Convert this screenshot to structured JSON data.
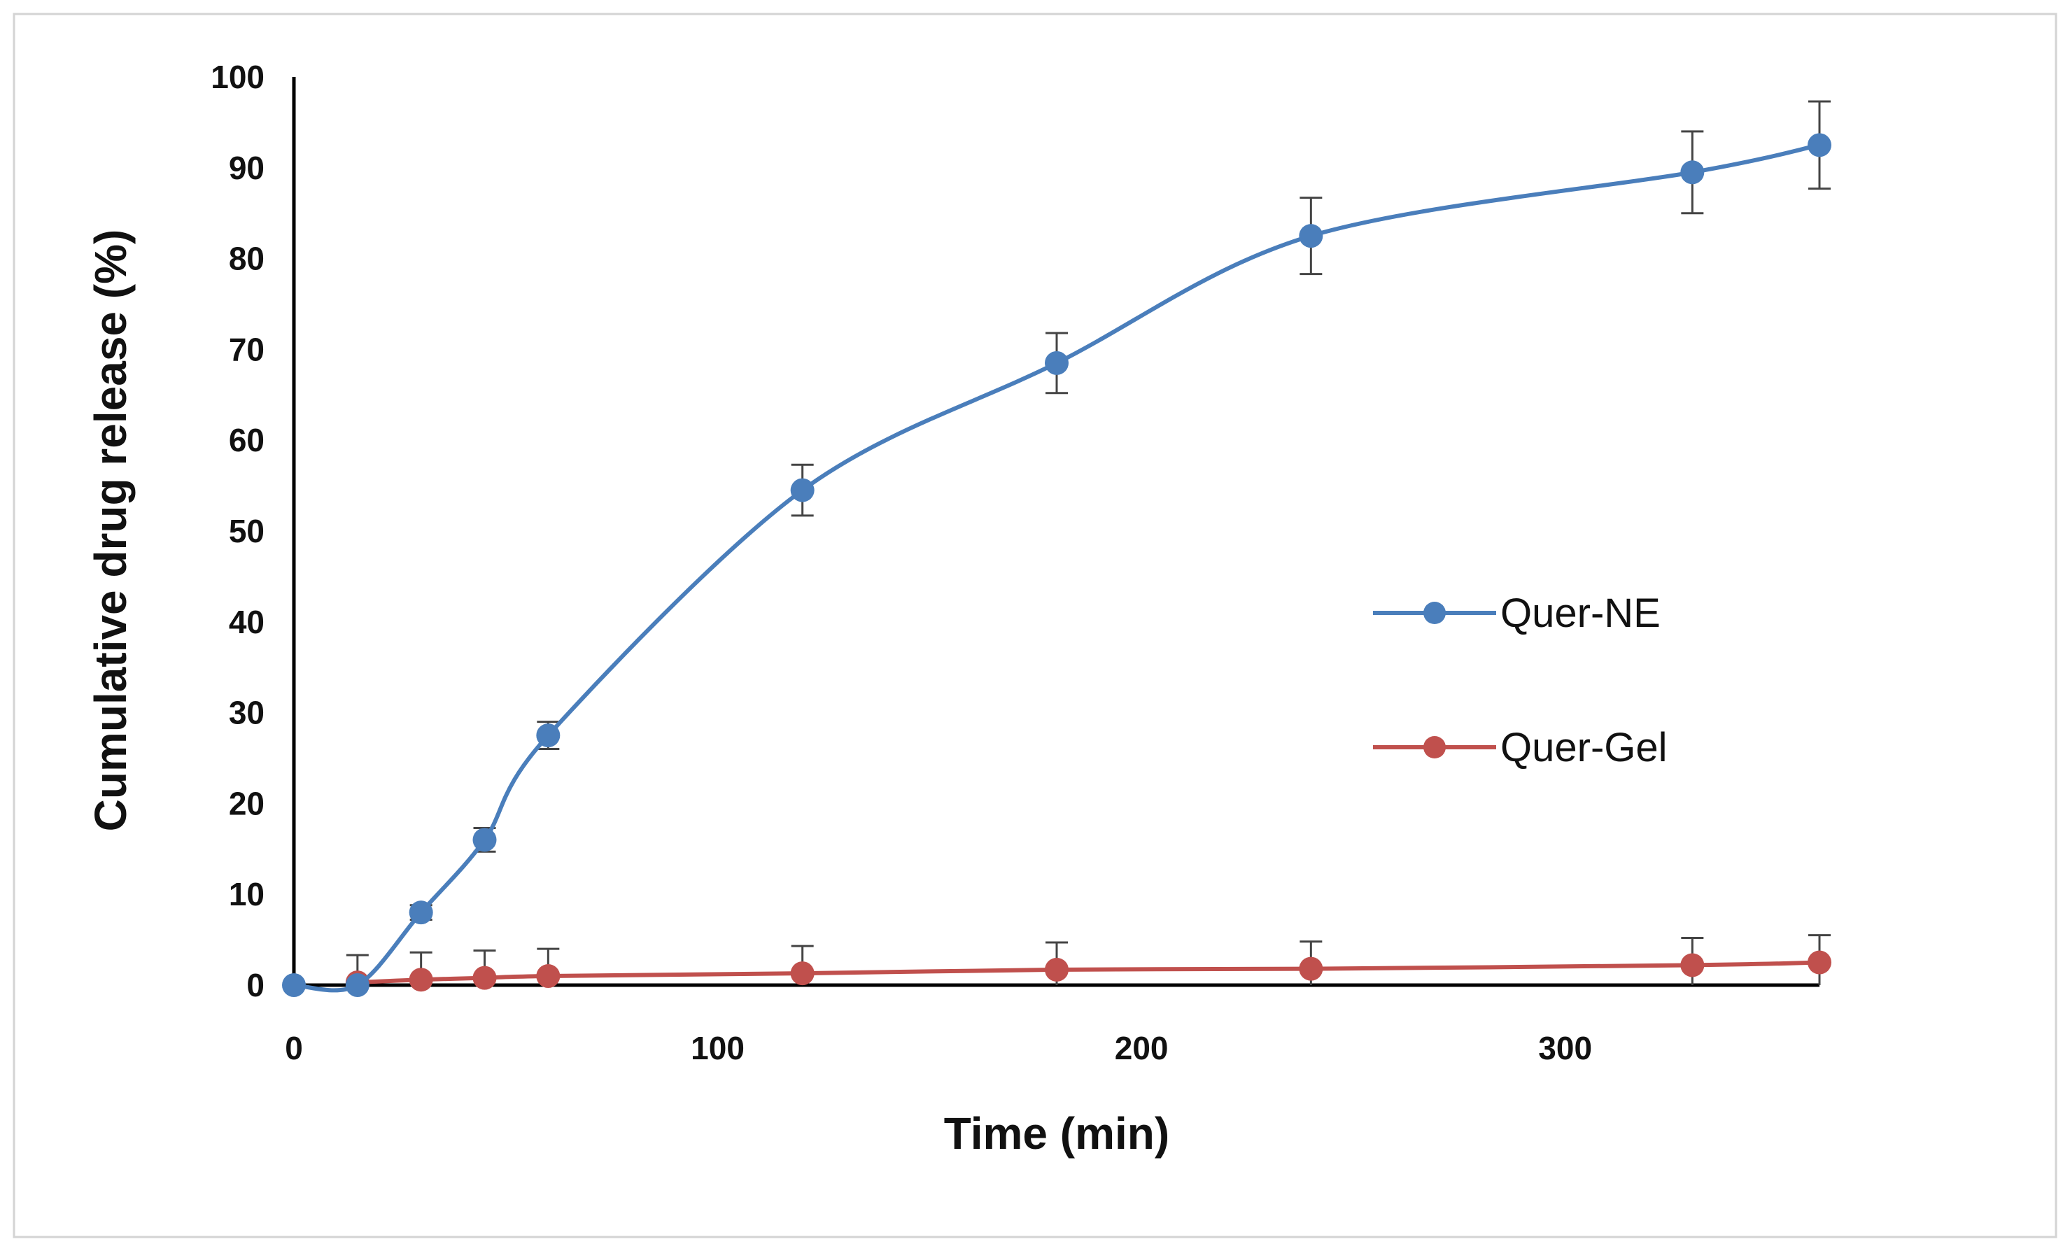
{
  "chart_data": {
    "type": "line",
    "title": "",
    "xlabel": "Time (min)",
    "ylabel": "Cumulative drug release (%)",
    "xlim": [
      0,
      360
    ],
    "ylim": [
      0,
      100
    ],
    "xticks": [
      0,
      100,
      200,
      300
    ],
    "yticks": [
      0,
      10,
      20,
      30,
      40,
      50,
      60,
      70,
      80,
      90,
      100
    ],
    "grid": false,
    "legend_position": "right",
    "series": [
      {
        "name": "Quer-NE",
        "color": "#4a7ebb",
        "x": [
          0,
          15,
          30,
          45,
          60,
          120,
          180,
          240,
          330,
          360
        ],
        "y": [
          0,
          0,
          8,
          16,
          27.5,
          54.5,
          68.5,
          82.5,
          89.5,
          92.5
        ],
        "error": [
          0,
          0,
          0.8,
          1.3,
          1.5,
          2.8,
          3.3,
          4.2,
          4.5,
          4.8
        ]
      },
      {
        "name": "Quer-Gel",
        "color": "#c0504d",
        "x": [
          15,
          30,
          45,
          60,
          120,
          180,
          240,
          330,
          360
        ],
        "y": [
          0.3,
          0.6,
          0.8,
          1,
          1.3,
          1.7,
          1.8,
          2.2,
          2.5
        ],
        "error": [
          3,
          3,
          3,
          3,
          3,
          3,
          3,
          3,
          3
        ]
      }
    ]
  }
}
